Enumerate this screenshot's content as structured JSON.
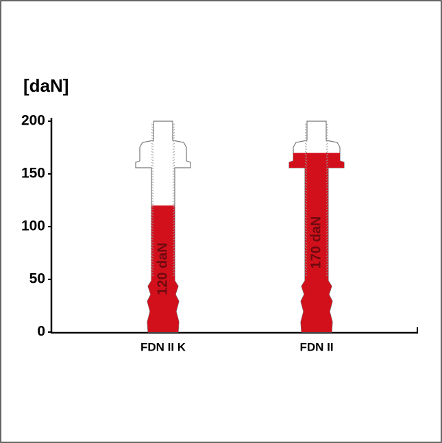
{
  "chart_data": {
    "type": "bar",
    "y_axis_label": "[daN]",
    "categories": [
      "FDN II K",
      "FDN II"
    ],
    "values": [
      120,
      170
    ],
    "value_labels": [
      "120 daN",
      "170 daN"
    ],
    "color": "#d2101c",
    "ylim": [
      0,
      200
    ],
    "yticks": [
      0,
      50,
      100,
      150,
      200
    ]
  }
}
